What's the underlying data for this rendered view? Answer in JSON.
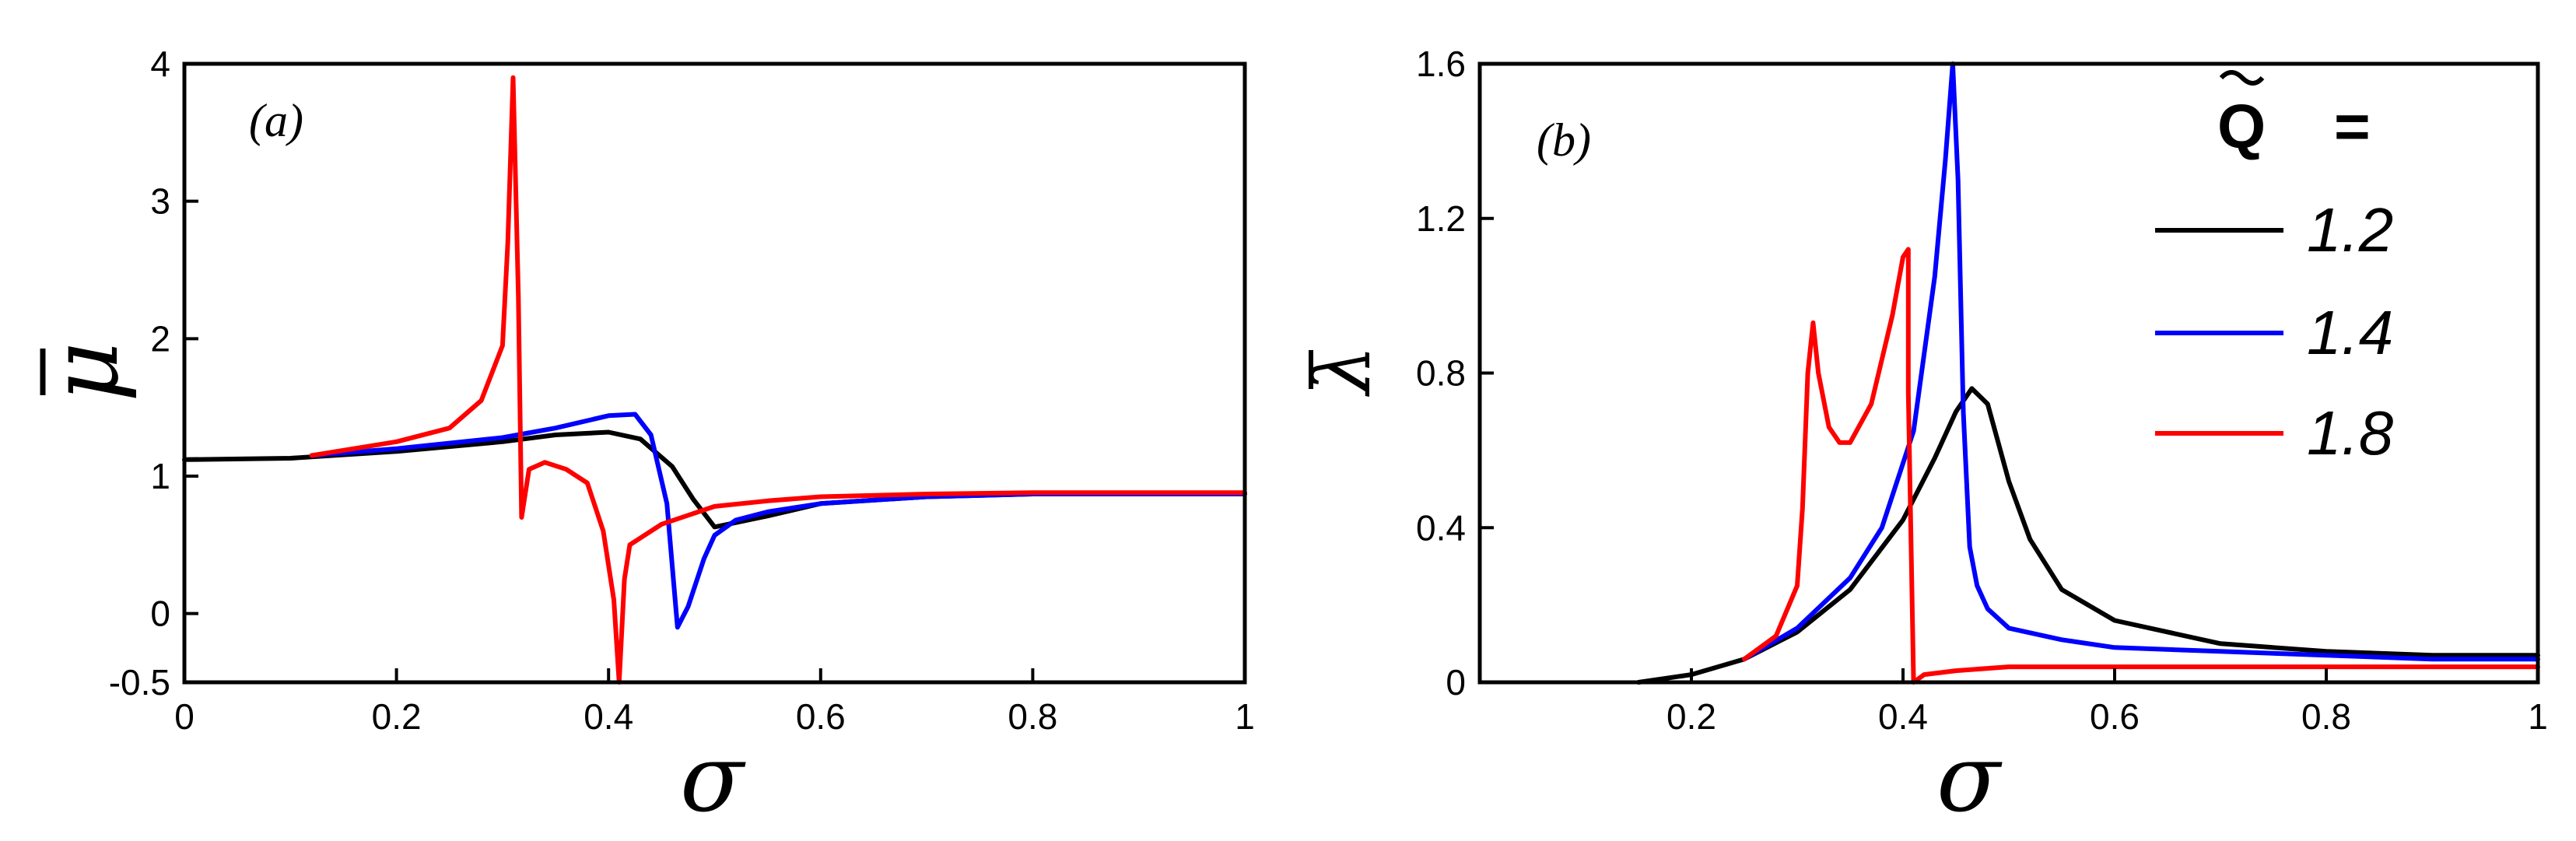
{
  "chart_data": [
    {
      "type": "line",
      "panel_label": "(a)",
      "xlabel": "σ",
      "ylabel": "μ",
      "ylabel_overbar": true,
      "xlim": [
        0,
        1
      ],
      "ylim": [
        -0.5,
        4
      ],
      "xticks": [
        "0",
        "0.2",
        "0.4",
        "0.6",
        "0.8",
        "1"
      ],
      "yticks": [
        "-0.5",
        "0",
        "1",
        "2",
        "3",
        "4"
      ],
      "series": [
        {
          "color": "#000000",
          "x": [
            0,
            0.1,
            0.2,
            0.3,
            0.35,
            0.4,
            0.43,
            0.46,
            0.48,
            0.5,
            0.55,
            0.6,
            0.7,
            0.8,
            0.9,
            1.0
          ],
          "y": [
            1.12,
            1.13,
            1.18,
            1.25,
            1.3,
            1.32,
            1.27,
            1.07,
            0.83,
            0.63,
            0.71,
            0.8,
            0.85,
            0.87,
            0.87,
            0.87
          ]
        },
        {
          "color": "#0000ff",
          "x": [
            0.12,
            0.2,
            0.3,
            0.35,
            0.4,
            0.425,
            0.44,
            0.455,
            0.465,
            0.475,
            0.49,
            0.5,
            0.52,
            0.55,
            0.6,
            0.7,
            0.8,
            0.9,
            1.0
          ],
          "y": [
            1.15,
            1.2,
            1.28,
            1.35,
            1.44,
            1.45,
            1.3,
            0.8,
            -0.1,
            0.05,
            0.4,
            0.57,
            0.68,
            0.74,
            0.8,
            0.85,
            0.87,
            0.87,
            0.87
          ]
        },
        {
          "color": "#ff0000",
          "x": [
            0.12,
            0.2,
            0.25,
            0.28,
            0.3,
            0.305,
            0.31,
            0.315,
            0.318,
            0.325,
            0.34,
            0.36,
            0.38,
            0.395,
            0.405,
            0.41,
            0.415,
            0.42,
            0.43,
            0.45,
            0.5,
            0.55,
            0.6,
            0.7,
            0.8,
            0.9,
            1.0
          ],
          "y": [
            1.15,
            1.25,
            1.35,
            1.55,
            1.95,
            2.7,
            3.9,
            2.3,
            0.7,
            1.05,
            1.1,
            1.05,
            0.95,
            0.6,
            0.1,
            -0.5,
            0.25,
            0.5,
            0.55,
            0.65,
            0.78,
            0.82,
            0.85,
            0.87,
            0.88,
            0.88,
            0.88
          ]
        }
      ]
    },
    {
      "type": "line",
      "panel_label": "(b)",
      "xlabel": "σ",
      "ylabel": "λ",
      "ylabel_overbar": true,
      "xlim": [
        0,
        1
      ],
      "ylim": [
        0,
        1.6
      ],
      "xticks": [
        "0.2",
        "0.4",
        "0.6",
        "0.8",
        "1"
      ],
      "yticks": [
        "0",
        "0.4",
        "0.8",
        "1.2",
        "1.6"
      ],
      "legend": {
        "title": "Q",
        "title_suffix": "=",
        "placement": "top-right",
        "entries": [
          "1.2",
          "1.4",
          "1.8"
        ]
      },
      "series": [
        {
          "name": "1.2",
          "color": "#000000",
          "x": [
            0.15,
            0.2,
            0.25,
            0.3,
            0.35,
            0.4,
            0.43,
            0.45,
            0.465,
            0.48,
            0.5,
            0.52,
            0.55,
            0.6,
            0.7,
            0.8,
            0.9,
            1.0
          ],
          "y": [
            0.0,
            0.02,
            0.06,
            0.13,
            0.24,
            0.42,
            0.58,
            0.7,
            0.76,
            0.72,
            0.52,
            0.37,
            0.24,
            0.16,
            0.1,
            0.08,
            0.07,
            0.07
          ]
        },
        {
          "name": "1.4",
          "color": "#0000ff",
          "x": [
            0.25,
            0.3,
            0.35,
            0.38,
            0.41,
            0.43,
            0.44,
            0.447,
            0.452,
            0.457,
            0.463,
            0.47,
            0.48,
            0.5,
            0.55,
            0.6,
            0.7,
            0.8,
            0.9,
            1.0
          ],
          "y": [
            0.06,
            0.14,
            0.27,
            0.4,
            0.65,
            1.05,
            1.35,
            1.6,
            1.3,
            0.7,
            0.35,
            0.25,
            0.19,
            0.14,
            0.11,
            0.09,
            0.08,
            0.07,
            0.06,
            0.06
          ]
        },
        {
          "name": "1.8",
          "color": "#ff0000",
          "x": [
            0.25,
            0.28,
            0.3,
            0.305,
            0.31,
            0.315,
            0.32,
            0.33,
            0.34,
            0.35,
            0.37,
            0.39,
            0.4,
            0.405,
            0.405,
            0.41,
            0.42,
            0.45,
            0.5,
            0.6,
            0.7,
            0.8,
            0.9,
            1.0
          ],
          "y": [
            0.06,
            0.12,
            0.25,
            0.45,
            0.8,
            0.93,
            0.8,
            0.66,
            0.62,
            0.62,
            0.72,
            0.95,
            1.1,
            1.12,
            0.75,
            0.0,
            0.02,
            0.03,
            0.04,
            0.04,
            0.04,
            0.04,
            0.04,
            0.04
          ]
        }
      ]
    }
  ]
}
